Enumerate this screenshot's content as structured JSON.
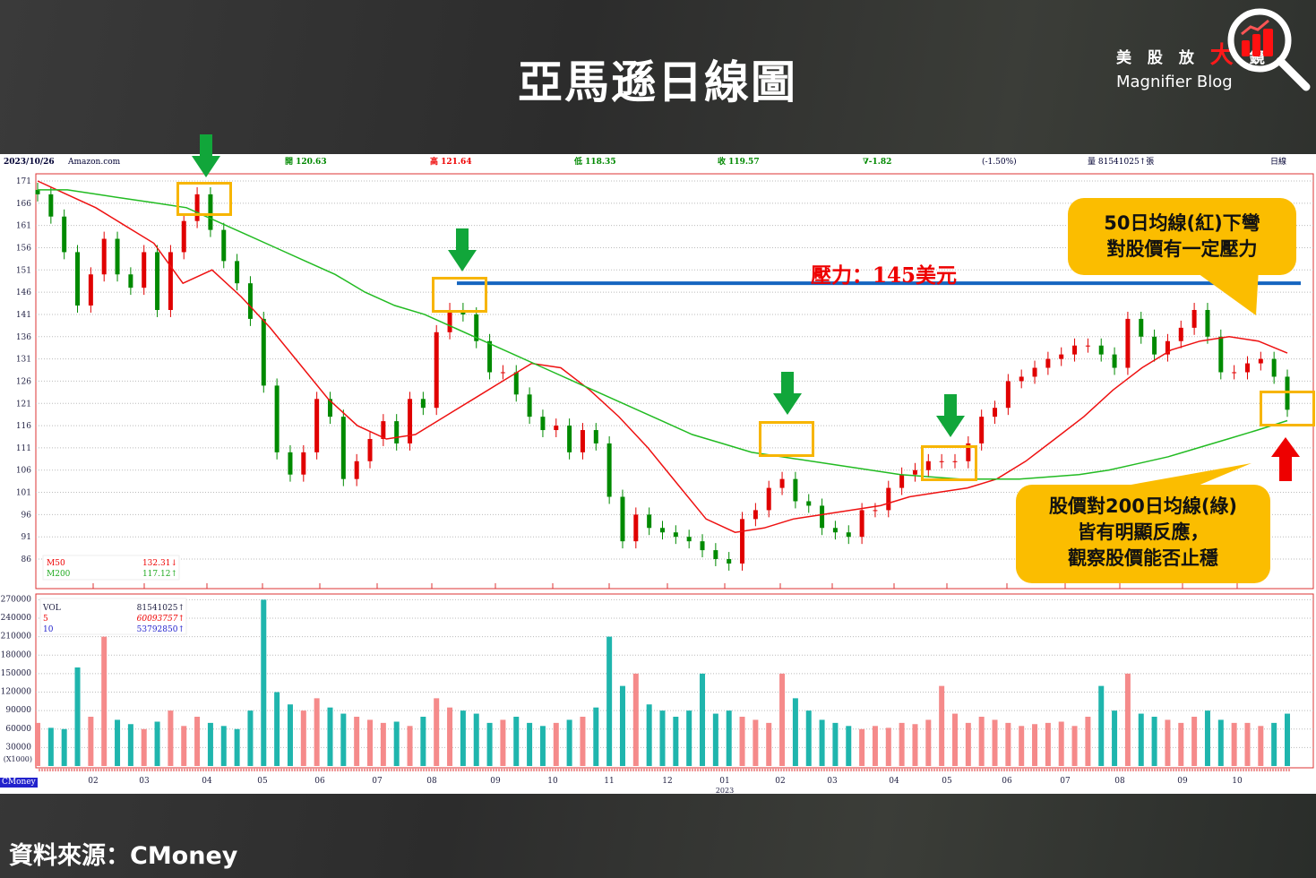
{
  "page": {
    "title": "亞馬遜日線圖",
    "logo": {
      "cn_prefix": "美 股 放 ",
      "cn_big": "大",
      "cn_suffix": " 鏡",
      "en": "Magnifier Blog"
    },
    "footer": "資料來源：CMoney",
    "watermark": "CMoney"
  },
  "header": {
    "date": "2023/10/26",
    "name": "Amazon.com",
    "open": "開 120.63",
    "high": "高 121.64",
    "low": "低 118.35",
    "close": "收 119.57",
    "change": "∇-1.82",
    "pct": "(-1.50%)",
    "volume": "量 81541025↑張",
    "period": "日線"
  },
  "annotations": {
    "resistance": "壓力：145美元",
    "callout_top": [
      "50日均線(紅)下彎",
      "對股價有一定壓力"
    ],
    "callout_bottom": [
      "股價對200日均線(綠)",
      "皆有明顯反應，",
      "觀察股價能否止穩"
    ]
  },
  "colors": {
    "up": "#e00000",
    "down": "#008a00",
    "ma50": "#ee1111",
    "ma200": "#22bb22",
    "vol_up": "#f58a8a",
    "vol_down": "#1fb5ad",
    "resistance": "#1565c0",
    "highlight": "#f7b500",
    "arrow_green": "#11a63a",
    "arrow_red": "#ee0000"
  },
  "chart_data": [
    {
      "type": "candlestick",
      "title": "",
      "ylim": [
        84,
        173
      ],
      "yticks": [
        171,
        166,
        161,
        156,
        151,
        146,
        141,
        136,
        131,
        126,
        121,
        116,
        111,
        106,
        101,
        96,
        91,
        86
      ],
      "xticks": [
        "02",
        "03",
        "04",
        "05",
        "06",
        "07",
        "08",
        "09",
        "10",
        "11",
        "12",
        "01",
        "02",
        "03",
        "04",
        "05",
        "06",
        "07",
        "08",
        "09",
        "10"
      ],
      "xtick_year": "2023",
      "close": [
        168,
        163,
        155,
        143,
        150,
        158,
        150,
        147,
        155,
        142,
        155,
        162,
        168,
        160,
        153,
        148,
        140,
        125,
        110,
        105,
        110,
        122,
        118,
        104,
        108,
        113,
        117,
        112,
        122,
        120,
        137,
        142,
        141,
        135,
        128,
        128,
        123,
        118,
        115,
        116,
        110,
        115,
        112,
        100,
        90,
        96,
        93,
        92,
        91,
        90,
        88,
        86,
        85,
        95,
        97,
        102,
        104,
        99,
        98,
        93,
        92,
        91,
        97,
        97,
        102,
        105,
        106,
        108,
        108,
        108,
        112,
        118,
        120,
        126,
        127,
        129,
        131,
        132,
        134,
        134,
        132,
        129,
        140,
        136,
        132,
        135,
        138,
        142,
        136,
        128,
        128,
        130,
        131,
        127,
        119.57
      ],
      "resistance_level": 145,
      "legend": [
        {
          "name": "M50",
          "value": "132.31↓"
        },
        {
          "name": "M200",
          "value": "117.12↑"
        }
      ],
      "series": [
        {
          "name": "M50",
          "values": [
            171,
            168,
            165,
            161,
            157,
            148,
            151,
            145,
            138,
            130,
            122,
            116,
            113,
            114,
            118,
            122,
            126,
            130,
            129,
            124,
            118,
            111,
            103,
            95,
            92,
            93,
            95,
            96,
            97,
            98,
            100,
            101,
            102,
            104,
            108,
            113,
            118,
            124,
            129,
            133,
            135,
            136,
            135,
            132.31
          ]
        },
        {
          "name": "M200",
          "values": [
            169,
            169,
            168,
            167,
            166,
            165,
            162,
            159,
            156,
            153,
            150,
            146,
            143,
            141,
            138,
            135,
            132,
            129,
            126,
            123,
            120,
            117,
            114,
            112,
            110,
            109,
            108,
            107,
            106,
            105,
            104.5,
            104,
            104,
            104,
            104.5,
            105,
            106,
            107.5,
            109,
            111,
            113,
            115,
            117.12
          ]
        }
      ]
    },
    {
      "type": "bar",
      "title": "",
      "yunit": "(X1000)",
      "ylim": [
        0,
        270000
      ],
      "yticks": [
        270000,
        240000,
        210000,
        180000,
        150000,
        120000,
        90000,
        60000,
        30000
      ],
      "legend": [
        {
          "name": "VOL",
          "value": "81541025↑"
        },
        {
          "name": "5",
          "value": "60093757↑"
        },
        {
          "name": "10",
          "value": "53792850↑"
        }
      ],
      "values": [
        70000,
        62000,
        60000,
        160000,
        80000,
        210000,
        75000,
        68000,
        60000,
        72000,
        90000,
        65000,
        80000,
        70000,
        65000,
        60000,
        90000,
        270000,
        120000,
        100000,
        90000,
        110000,
        95000,
        85000,
        80000,
        75000,
        70000,
        72000,
        65000,
        80000,
        110000,
        95000,
        90000,
        85000,
        70000,
        75000,
        80000,
        70000,
        65000,
        70000,
        75000,
        80000,
        95000,
        210000,
        130000,
        150000,
        100000,
        90000,
        80000,
        90000,
        150000,
        85000,
        90000,
        80000,
        75000,
        70000,
        150000,
        110000,
        90000,
        75000,
        70000,
        65000,
        60000,
        65000,
        62000,
        70000,
        68000,
        75000,
        130000,
        85000,
        70000,
        80000,
        75000,
        70000,
        65000,
        68000,
        70000,
        72000,
        65000,
        80000,
        130000,
        90000,
        150000,
        85000,
        80000,
        75000,
        70000,
        80000,
        90000,
        75000,
        70000,
        70000,
        65000,
        70000,
        85000
      ]
    }
  ]
}
